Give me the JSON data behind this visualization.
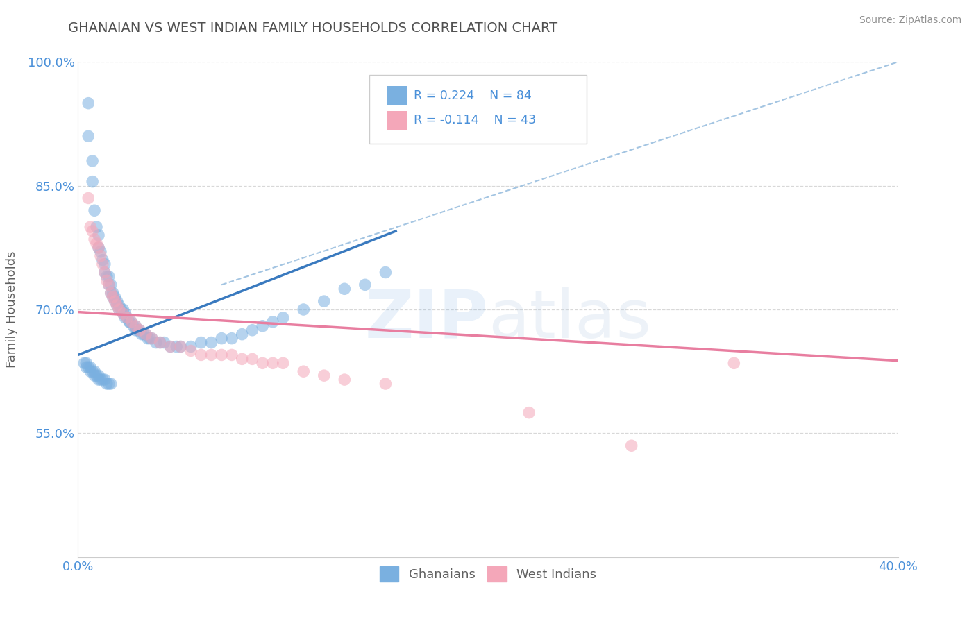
{
  "title": "GHANAIAN VS WEST INDIAN FAMILY HOUSEHOLDS CORRELATION CHART",
  "source": "Source: ZipAtlas.com",
  "ylabel": "Family Households",
  "xlim": [
    0.0,
    0.4
  ],
  "ylim": [
    0.4,
    1.0
  ],
  "yticks": [
    0.55,
    0.7,
    0.85,
    1.0
  ],
  "xticks": [
    0.0,
    0.4
  ],
  "ytick_labels": [
    "55.0%",
    "70.0%",
    "85.0%",
    "100.0%"
  ],
  "xtick_labels": [
    "0.0%",
    "40.0%"
  ],
  "grid_yticks": [
    0.55,
    0.7,
    0.85,
    1.0
  ],
  "legend_labels": [
    "Ghanaians",
    "West Indians"
  ],
  "blue_color": "#7ab0e0",
  "pink_color": "#f4a7b9",
  "blue_line_color": "#3a7abf",
  "pink_line_color": "#e87ea0",
  "dashed_line_color": "#9abfdf",
  "background_color": "#ffffff",
  "title_color": "#505050",
  "source_color": "#909090",
  "axis_label_color": "#606060",
  "tick_label_color": "#4a90d9",
  "grid_color": "#d8d8d8",
  "watermark_color_zip": "#4a90d9",
  "watermark_color_atlas": "#b0c8e0",
  "blue_scatter_x": [
    0.005,
    0.005,
    0.007,
    0.007,
    0.008,
    0.009,
    0.01,
    0.01,
    0.011,
    0.012,
    0.013,
    0.013,
    0.014,
    0.015,
    0.015,
    0.016,
    0.016,
    0.017,
    0.017,
    0.018,
    0.018,
    0.019,
    0.019,
    0.02,
    0.02,
    0.021,
    0.022,
    0.022,
    0.023,
    0.023,
    0.024,
    0.025,
    0.025,
    0.026,
    0.027,
    0.028,
    0.028,
    0.029,
    0.03,
    0.031,
    0.032,
    0.033,
    0.034,
    0.035,
    0.036,
    0.038,
    0.04,
    0.042,
    0.045,
    0.048,
    0.05,
    0.055,
    0.06,
    0.065,
    0.07,
    0.075,
    0.08,
    0.085,
    0.09,
    0.095,
    0.1,
    0.11,
    0.12,
    0.13,
    0.14,
    0.15,
    0.003,
    0.004,
    0.004,
    0.005,
    0.006,
    0.006,
    0.007,
    0.008,
    0.008,
    0.009,
    0.01,
    0.01,
    0.011,
    0.012,
    0.013,
    0.014,
    0.015,
    0.016
  ],
  "blue_scatter_y": [
    0.91,
    0.95,
    0.88,
    0.855,
    0.82,
    0.8,
    0.79,
    0.775,
    0.77,
    0.76,
    0.755,
    0.745,
    0.74,
    0.74,
    0.73,
    0.73,
    0.72,
    0.72,
    0.715,
    0.715,
    0.71,
    0.71,
    0.705,
    0.705,
    0.7,
    0.7,
    0.7,
    0.695,
    0.695,
    0.69,
    0.69,
    0.685,
    0.685,
    0.685,
    0.68,
    0.68,
    0.675,
    0.675,
    0.675,
    0.67,
    0.67,
    0.67,
    0.665,
    0.665,
    0.665,
    0.66,
    0.66,
    0.66,
    0.655,
    0.655,
    0.655,
    0.655,
    0.66,
    0.66,
    0.665,
    0.665,
    0.67,
    0.675,
    0.68,
    0.685,
    0.69,
    0.7,
    0.71,
    0.725,
    0.73,
    0.745,
    0.635,
    0.635,
    0.63,
    0.63,
    0.63,
    0.625,
    0.625,
    0.625,
    0.62,
    0.62,
    0.62,
    0.615,
    0.615,
    0.615,
    0.615,
    0.61,
    0.61,
    0.61
  ],
  "pink_scatter_x": [
    0.005,
    0.006,
    0.007,
    0.008,
    0.009,
    0.01,
    0.011,
    0.012,
    0.013,
    0.014,
    0.015,
    0.016,
    0.017,
    0.018,
    0.019,
    0.02,
    0.022,
    0.024,
    0.026,
    0.028,
    0.03,
    0.033,
    0.036,
    0.04,
    0.045,
    0.05,
    0.055,
    0.06,
    0.065,
    0.07,
    0.075,
    0.08,
    0.085,
    0.09,
    0.095,
    0.1,
    0.11,
    0.12,
    0.13,
    0.15,
    0.22,
    0.27,
    0.32
  ],
  "pink_scatter_y": [
    0.835,
    0.8,
    0.795,
    0.785,
    0.78,
    0.775,
    0.765,
    0.755,
    0.745,
    0.735,
    0.73,
    0.72,
    0.715,
    0.71,
    0.705,
    0.7,
    0.695,
    0.69,
    0.685,
    0.68,
    0.675,
    0.67,
    0.665,
    0.66,
    0.655,
    0.655,
    0.65,
    0.645,
    0.645,
    0.645,
    0.645,
    0.64,
    0.64,
    0.635,
    0.635,
    0.635,
    0.625,
    0.62,
    0.615,
    0.61,
    0.575,
    0.535,
    0.635
  ],
  "blue_trendline_x": [
    0.0,
    0.155
  ],
  "blue_trendline_y": [
    0.645,
    0.795
  ],
  "pink_trendline_x": [
    0.0,
    0.4
  ],
  "pink_trendline_y": [
    0.697,
    0.638
  ],
  "dashed_trendline_x": [
    0.07,
    0.4
  ],
  "dashed_trendline_y": [
    0.73,
    1.0
  ]
}
